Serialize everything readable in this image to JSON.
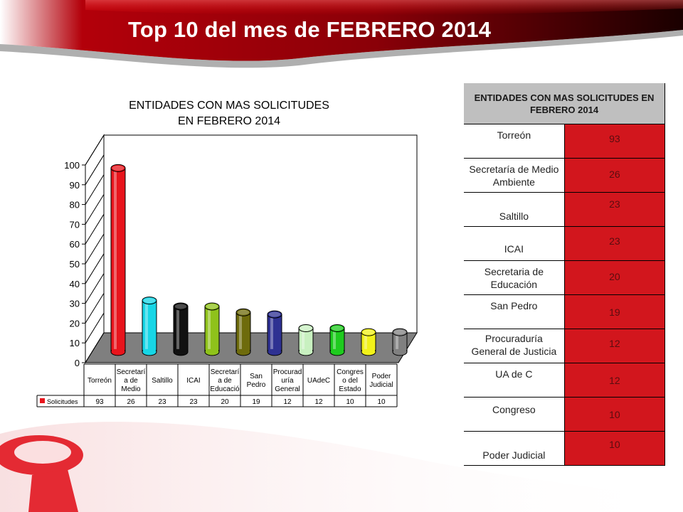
{
  "slide": {
    "title": "Top 10 del mes de FEBRERO 2014"
  },
  "colors": {
    "banner_dark": "#5a0000",
    "banner_red": "#c0000b",
    "value_cell": "#d2161d",
    "header_cell": "#bfbfbf"
  },
  "chart_data": {
    "type": "bar",
    "title_line1": "ENTIDADES CON MAS SOLICITUDES",
    "title_line2": "EN FEBRERO 2014",
    "categories": [
      [
        "Torreón"
      ],
      [
        "Secretarí",
        "a de",
        "Medio"
      ],
      [
        "Saltillo"
      ],
      [
        "ICAI"
      ],
      [
        "Secretarí",
        "a de",
        "Educació"
      ],
      [
        "San",
        "Pedro"
      ],
      [
        "Procurad",
        "uría",
        "General"
      ],
      [
        "UAdeC"
      ],
      [
        "Congres",
        "o del",
        "Estado"
      ],
      [
        "Poder",
        "Judicial"
      ]
    ],
    "series": [
      {
        "name": "Solicitudes",
        "values": [
          93,
          26,
          23,
          23,
          20,
          19,
          12,
          12,
          10,
          10
        ]
      }
    ],
    "ylim": [
      0,
      100
    ],
    "yticks": [
      0,
      10,
      20,
      30,
      40,
      50,
      60,
      70,
      80,
      90,
      100
    ],
    "bar_colors": [
      "#e8141c",
      "#17d6e6",
      "#111111",
      "#8fc21b",
      "#6e6b0c",
      "#2e3192",
      "#c8f0c0",
      "#1ecb1e",
      "#f2f21a",
      "#808080"
    ],
    "legend": "bottom data table",
    "grid": false
  },
  "table": {
    "header": "ENTIDADES CON MAS SOLICITUDES EN FEBRERO 2014",
    "rows": [
      {
        "name": "Torreón",
        "value": "93"
      },
      {
        "name": "Secretaría de Medio Ambiente",
        "value": "26"
      },
      {
        "name": "Saltillo",
        "value": "23"
      },
      {
        "name": "ICAI",
        "value": "23"
      },
      {
        "name": "Secretaria de Educación",
        "value": "20"
      },
      {
        "name": "San Pedro",
        "value": "19"
      },
      {
        "name": "Procuraduría General de Justicia",
        "value": "12"
      },
      {
        "name": "UA de C",
        "value": "12"
      },
      {
        "name": "Congreso",
        "value": "10"
      },
      {
        "name": "Poder Judicial",
        "value": "10"
      }
    ]
  }
}
